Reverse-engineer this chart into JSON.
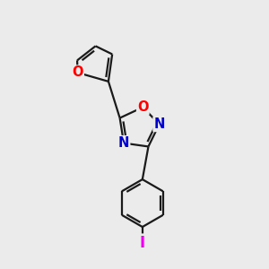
{
  "bg_color": "#ebebeb",
  "bond_color": "#1a1a1a",
  "bond_width": 1.6,
  "atom_colors": {
    "O": "#ff0000",
    "N": "#0000cc",
    "I": "#ee00ee",
    "C": "#1a1a1a"
  },
  "font_size_atom": 10.5
}
